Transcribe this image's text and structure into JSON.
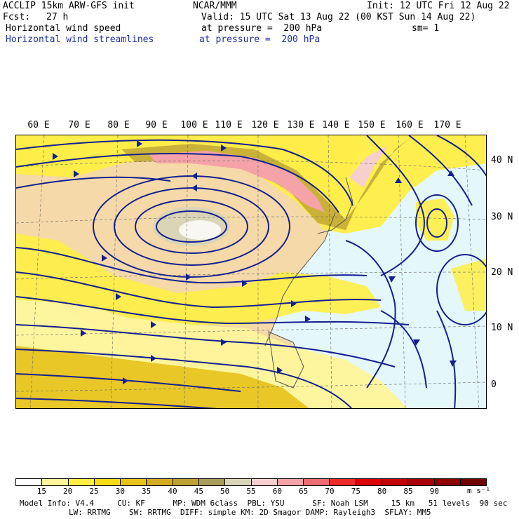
{
  "header": {
    "model": "ACCLIP 15km ARW-GFS init",
    "center": "NCAR/MMM",
    "init": "Init: 12 UTC Fri 12 Aug 22",
    "fcst_label": "Fcst:",
    "fcst_value": "27 h",
    "valid": "Valid: 15 UTC Sat 13 Aug 22 (00 KST Sun 14 Aug 22)",
    "field1": "Horizontal wind speed",
    "field1_level": "at pressure =  200 hPa",
    "sm": "sm= 1",
    "field2": "Horizontal wind streamlines",
    "field2_level": "at pressure =  200 hPa"
  },
  "map": {
    "lon_labels": [
      "60 E",
      "70 E",
      "80 E",
      "90 E",
      "100 E",
      "110 E",
      "120 E",
      "130 E",
      "140 E",
      "150 E",
      "160 E",
      "170 E"
    ],
    "lat_labels": [
      "40 N",
      "30 N",
      "20 N",
      "10 N",
      "0"
    ],
    "colors": {
      "land": "#f5d9a8",
      "ocean": "#e4f7fb",
      "streamline": "#14208f",
      "coast": "#555555"
    }
  },
  "colorbar": {
    "labels": [
      "15",
      "20",
      "25",
      "30",
      "35",
      "40",
      "45",
      "50",
      "55",
      "60",
      "65",
      "70",
      "75",
      "80",
      "85",
      "90"
    ],
    "units": "m s⁻¹",
    "colors": [
      "#ffffff",
      "#fff59a",
      "#ffee44",
      "#f7dc14",
      "#e6c21a",
      "#d3ac22",
      "#bda133",
      "#a89d5b",
      "#d8d4b8",
      "#f7cfcf",
      "#f5a3a8",
      "#ee6c73",
      "#ee2a2a",
      "#dc0000",
      "#c30000",
      "#a80000",
      "#8c0000",
      "#6f0000"
    ]
  },
  "footer": {
    "line1": "Model Info: V4.4     CU: KF      MP: WDM 6class  PBL: YSU      SF: Noah LSM     15 km   51 levels  90 sec",
    "line2": "LW: RRTMG    SW: RRTMG  DIFF: simple KM: 2D Smagor DAMP: Rayleigh3  SFLAY: MM5"
  }
}
